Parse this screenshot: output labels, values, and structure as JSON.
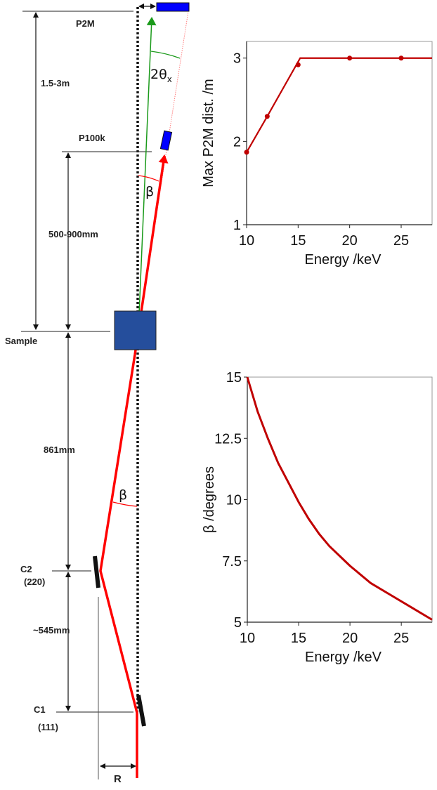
{
  "diagram": {
    "labels": {
      "p2m": "P2M",
      "dist_p2m": "1.5-3m",
      "p100k": "P100k",
      "dist_p100k": "500-900mm",
      "sample": "Sample",
      "dist_sample_c2": "861mm",
      "c2": "C2",
      "c2_reflection": "(220)",
      "dist_c2_c1": "~545mm",
      "c1": "C1",
      "c1_reflection": "(111)",
      "offset": "R",
      "angle_beta_upper": "β",
      "angle_beta_lower": "β",
      "angle_two_theta": "2θ",
      "angle_two_theta_sub": "x"
    },
    "colors": {
      "beam": "#ff0000",
      "scattered": "#1a9a1a",
      "detector": "#0000ff",
      "sample": "#254e9c"
    }
  },
  "chart_data": [
    {
      "type": "line",
      "xlabel": "Energy /keV",
      "ylabel": "Max P2M dist. /m",
      "xlim": [
        10,
        28
      ],
      "ylim": [
        1,
        3.2
      ],
      "xticks": [
        "10",
        "15",
        "20",
        "25"
      ],
      "yticks": [
        "1",
        "2",
        "3"
      ],
      "grid": false,
      "color": "#c00000",
      "line": {
        "x": [
          10,
          12,
          15.2,
          28
        ],
        "y": [
          1.87,
          2.3,
          3,
          3
        ]
      },
      "points": {
        "x": [
          10,
          12,
          15,
          20,
          25
        ],
        "y": [
          1.87,
          2.3,
          2.92,
          3,
          3
        ]
      }
    },
    {
      "type": "line",
      "xlabel": "Energy /keV",
      "ylabel": "β /degrees",
      "xlim": [
        10,
        28
      ],
      "ylim": [
        5,
        15
      ],
      "xticks": [
        "10",
        "15",
        "20",
        "25"
      ],
      "yticks": [
        "5",
        "7.5",
        "10",
        "12.5",
        "15"
      ],
      "grid": false,
      "color": "#c00000",
      "x": [
        10,
        11,
        12,
        13,
        14,
        15,
        16,
        17,
        18,
        19,
        20,
        22,
        24,
        26,
        28
      ],
      "y": [
        15,
        13.6,
        12.5,
        11.5,
        10.7,
        9.9,
        9.2,
        8.6,
        8.1,
        7.7,
        7.3,
        6.6,
        6.1,
        5.6,
        5.1
      ]
    }
  ]
}
